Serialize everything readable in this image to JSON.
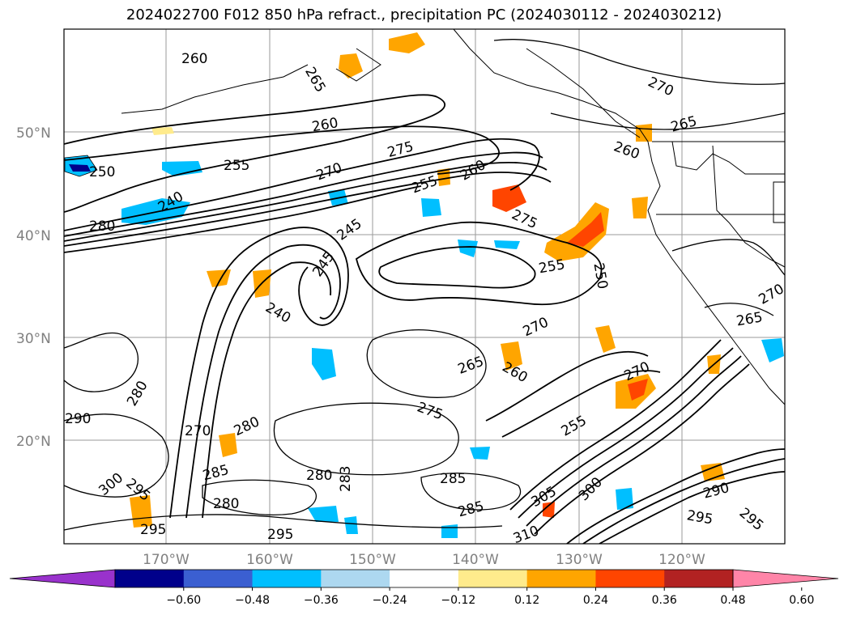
{
  "title": "2024022700 F012 850 hPa refract., precipitation PC (2024030112 - 2024030212)",
  "lat_labels": [
    "50°N",
    "40°N",
    "30°N",
    "20°N"
  ],
  "lon_labels": [
    "170°W",
    "160°W",
    "150°W",
    "140°W",
    "130°W",
    "120°W"
  ],
  "contour_labels": [
    "260",
    "265",
    "270",
    "265",
    "260",
    "255",
    "250",
    "245",
    "240",
    "255",
    "260",
    "270",
    "275",
    "255",
    "250",
    "245",
    "240",
    "265",
    "270",
    "275",
    "280",
    "280",
    "285",
    "290",
    "270",
    "280",
    "285",
    "300",
    "295",
    "295",
    "295",
    "280",
    "283",
    "285",
    "295",
    "305",
    "300",
    "310",
    "255",
    "260",
    "270",
    "265",
    "260",
    "275",
    "280",
    "290",
    "295",
    "270"
  ],
  "colorbar": {
    "ticks": [
      "−0.60",
      "−0.48",
      "−0.36",
      "−0.24",
      "−0.12",
      "0.12",
      "0.24",
      "0.36",
      "0.48",
      "0.60"
    ],
    "colors": [
      "#9932cc",
      "#00008b",
      "#3b5fd1",
      "#00bfff",
      "#add8f0",
      "#ffffff",
      "#ffeb8c",
      "#ffa500",
      "#ff4500",
      "#b22222",
      "#ff85a8"
    ]
  }
}
